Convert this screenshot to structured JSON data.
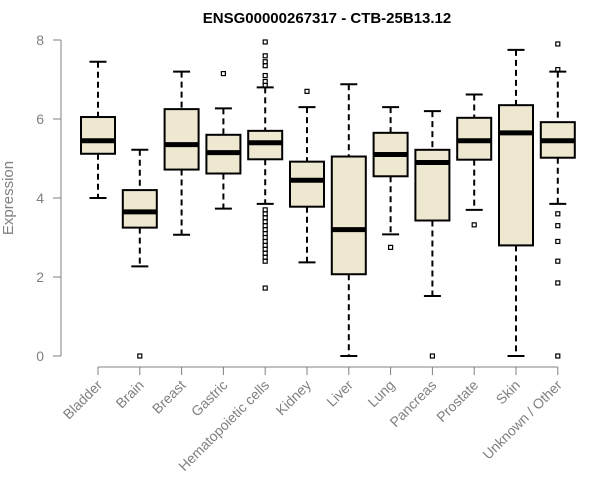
{
  "chart_data": {
    "type": "boxplot",
    "title": "ENSG00000267317 - CTB-25B13.12",
    "xlabel": "",
    "ylabel": "Expression",
    "ylim": [
      0,
      8
    ],
    "yticks": [
      0,
      2,
      4,
      6,
      8
    ],
    "grid": false,
    "box_fill": "#EFE8D0",
    "box_edge": "#000000",
    "axis_color": "#808080",
    "categories": [
      "Bladder",
      "Brain",
      "Breast",
      "Gastric",
      "Hematopoietic cells",
      "Kidney",
      "Liver",
      "Lung",
      "Pancreas",
      "Prostate",
      "Skin",
      "Unknown / Other"
    ],
    "boxes": [
      {
        "min": 4.0,
        "q1": 5.12,
        "median": 5.45,
        "q3": 6.05,
        "max": 7.45,
        "outliers": []
      },
      {
        "min": 2.27,
        "q1": 3.25,
        "median": 3.65,
        "q3": 4.2,
        "max": 5.22,
        "outliers": [
          0.0
        ]
      },
      {
        "min": 3.07,
        "q1": 4.72,
        "median": 5.35,
        "q3": 6.25,
        "max": 7.2,
        "outliers": []
      },
      {
        "min": 3.73,
        "q1": 4.62,
        "median": 5.15,
        "q3": 5.6,
        "max": 6.27,
        "outliers": [
          7.15
        ]
      },
      {
        "min": 3.85,
        "q1": 4.98,
        "median": 5.4,
        "q3": 5.7,
        "max": 6.8,
        "outliers": [
          7.95,
          7.6,
          7.45,
          7.35,
          7.1,
          6.95,
          6.85,
          3.7,
          3.6,
          3.5,
          3.4,
          3.3,
          3.2,
          3.1,
          3.0,
          2.9,
          2.8,
          2.7,
          2.6,
          2.5,
          2.4,
          1.72
        ]
      },
      {
        "min": 2.37,
        "q1": 3.78,
        "median": 4.45,
        "q3": 4.92,
        "max": 6.3,
        "outliers": [
          6.7
        ]
      },
      {
        "min": 0.0,
        "q1": 2.07,
        "median": 3.2,
        "q3": 5.05,
        "max": 6.88,
        "outliers": []
      },
      {
        "min": 3.08,
        "q1": 4.55,
        "median": 5.1,
        "q3": 5.65,
        "max": 6.3,
        "outliers": [
          2.75
        ]
      },
      {
        "min": 1.52,
        "q1": 3.43,
        "median": 4.9,
        "q3": 5.22,
        "max": 6.2,
        "outliers": [
          0.0
        ]
      },
      {
        "min": 3.7,
        "q1": 4.97,
        "median": 5.45,
        "q3": 6.03,
        "max": 6.62,
        "outliers": [
          3.32
        ]
      },
      {
        "min": 0.0,
        "q1": 2.8,
        "median": 5.65,
        "q3": 6.35,
        "max": 7.75,
        "outliers": []
      },
      {
        "min": 3.85,
        "q1": 5.02,
        "median": 5.45,
        "q3": 5.92,
        "max": 7.2,
        "outliers": [
          7.9,
          7.25,
          3.6,
          3.3,
          2.9,
          2.4,
          1.85,
          0.0
        ]
      }
    ]
  }
}
